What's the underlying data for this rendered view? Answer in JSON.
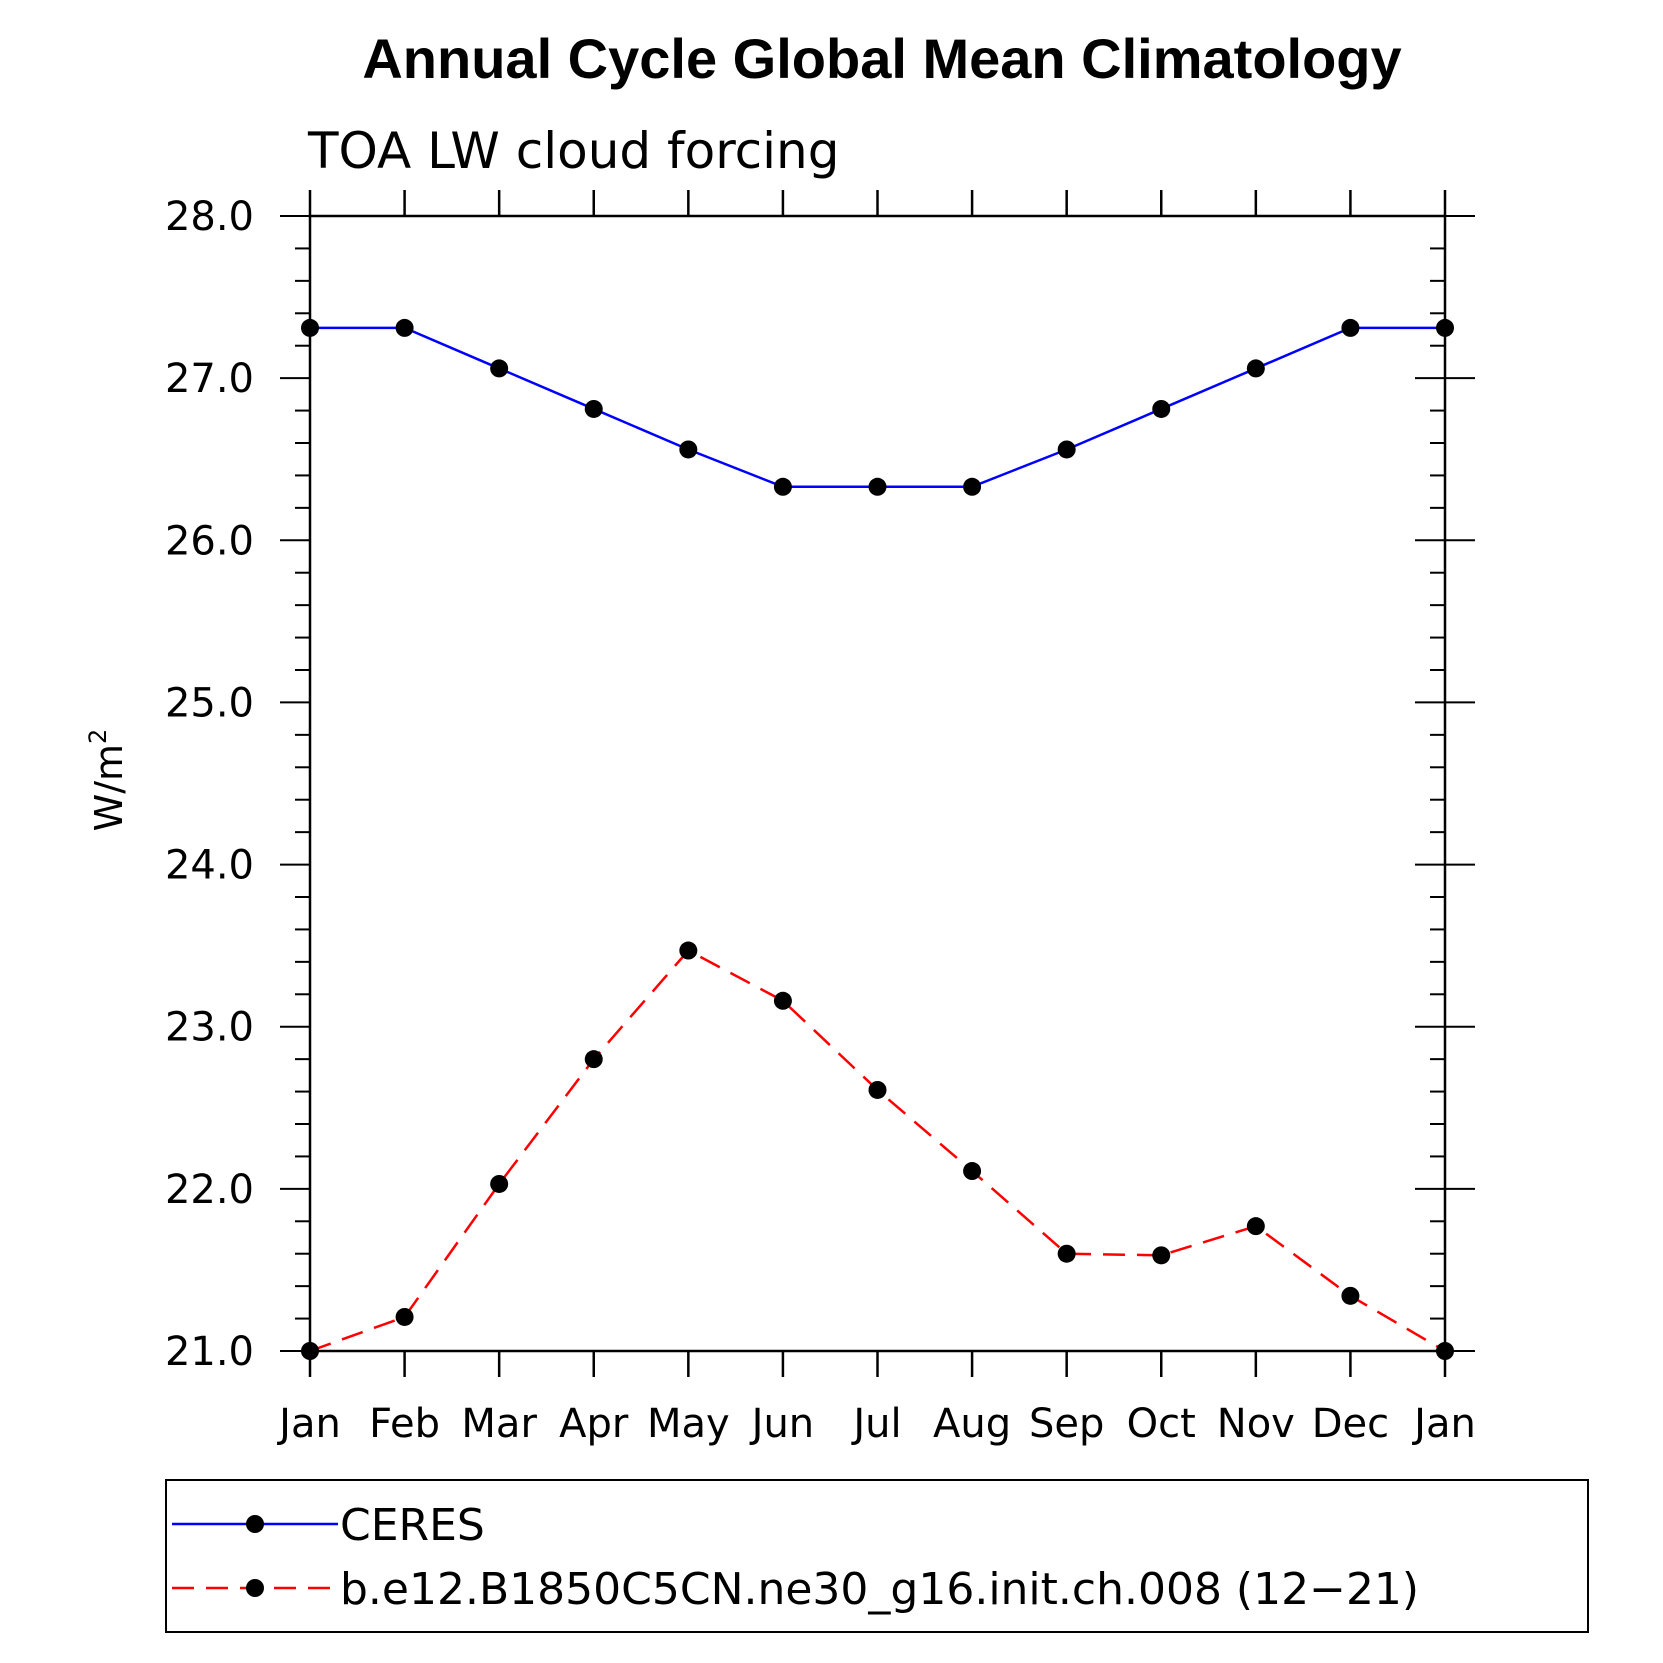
{
  "chart_data": {
    "type": "line",
    "title": "Annual Cycle Global Mean Climatology",
    "subtitle": "TOA LW cloud forcing",
    "ylabel": "W/m",
    "ylabel_superscript": "2",
    "xlabel": "",
    "categories": [
      "Jan",
      "Feb",
      "Mar",
      "Apr",
      "May",
      "Jun",
      "Jul",
      "Aug",
      "Sep",
      "Oct",
      "Nov",
      "Dec",
      "Jan"
    ],
    "ylim": [
      21.0,
      28.0
    ],
    "yticks": [
      "21.0",
      "22.0",
      "23.0",
      "24.0",
      "25.0",
      "26.0",
      "27.0",
      "28.0"
    ],
    "grid": false,
    "legend_position": "bottom",
    "series": [
      {
        "name": "CERES",
        "color": "#0000ff",
        "line_style": "solid",
        "marker": "filled-circle",
        "values": [
          27.31,
          27.31,
          27.06,
          26.81,
          26.56,
          26.33,
          26.33,
          26.33,
          26.56,
          26.81,
          27.06,
          27.31,
          27.31
        ]
      },
      {
        "name": "b.e12.B1850C5CN.ne30_g16.init.ch.008 (12−21)",
        "color": "#ff0000",
        "line_style": "dashed",
        "marker": "filled-circle",
        "values": [
          21.0,
          21.21,
          22.03,
          22.8,
          23.47,
          23.16,
          22.61,
          22.11,
          21.6,
          21.59,
          21.77,
          21.34,
          21.0
        ]
      }
    ]
  }
}
